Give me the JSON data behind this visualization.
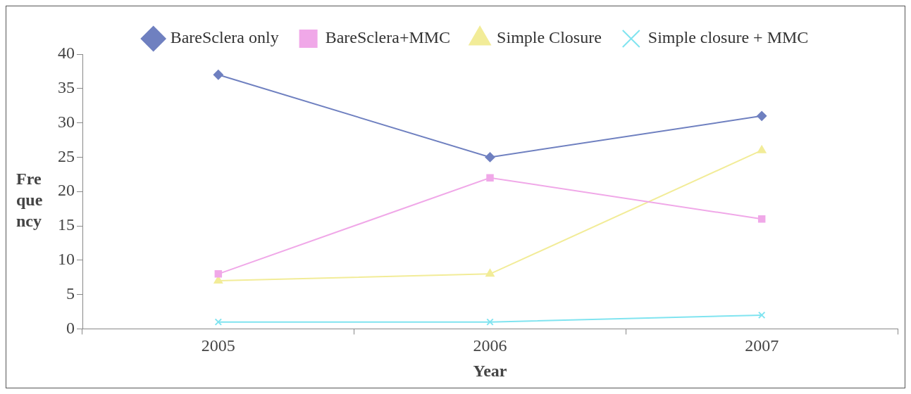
{
  "chart_data": {
    "type": "line",
    "xlabel": "Year",
    "ylabel": "Frequency",
    "categories": [
      "2005",
      "2006",
      "2007"
    ],
    "series": [
      {
        "name": "BareSclera only",
        "color": "#6f80c0",
        "marker": "diamond",
        "values": [
          37,
          25,
          31
        ]
      },
      {
        "name": "BareSclera+MMC",
        "color": "#f0a8e8",
        "marker": "square",
        "values": [
          8,
          22,
          16
        ]
      },
      {
        "name": "Simple Closure",
        "color": "#f2ec98",
        "marker": "triangle",
        "values": [
          7,
          8,
          26
        ]
      },
      {
        "name": "Simple closure + MMC",
        "color": "#80e4f0",
        "marker": "cross",
        "values": [
          1,
          1,
          2
        ]
      }
    ],
    "ylim": [
      0,
      40
    ],
    "yticks": [
      0,
      5,
      10,
      15,
      20,
      25,
      30,
      35,
      40
    ],
    "grid": false,
    "legend": "top"
  }
}
